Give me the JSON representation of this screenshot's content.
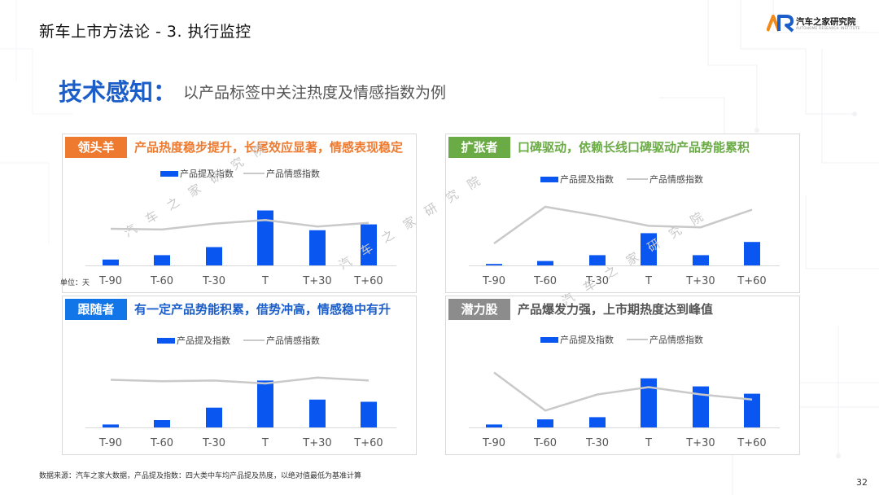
{
  "header": {
    "title": "新车上市方法论 - 3. 执行监控",
    "logo_text": "汽车之家研究院",
    "logo_sub": "AUTOHOME RESEARCH INSTITUTE"
  },
  "headline": {
    "main": "技术感知：",
    "sub": "以产品标签中关注热度及情感指数为例"
  },
  "watermark": "汽车之家研究院",
  "colors": {
    "bar": "#0a56f0",
    "line": "#c9c9c9",
    "headline": "#1b5ec9"
  },
  "panels": [
    {
      "tag": "领头羊",
      "tag_color": "#ee7a2f",
      "title": "产品热度稳步提升，长尾效应显著，情感表现稳定",
      "title_color": "#ee7a2f",
      "unit_label": "单位：天"
    },
    {
      "tag": "扩张者",
      "tag_color": "#6aab45",
      "title": "口碑驱动，依赖长线口碑驱动产品势能累积",
      "title_color": "#6aab45"
    },
    {
      "tag": "跟随者",
      "tag_color": "#1276e8",
      "title": "有一定产品势能积累，借势冲高，情感稳中有升",
      "title_color": "#1b5ec9"
    },
    {
      "tag": "潜力股",
      "tag_color": "#8c8c8c",
      "title": "产品爆发力强，上市期热度达到峰值",
      "title_color": "#555555"
    }
  ],
  "chart_data": [
    {
      "type": "bar",
      "categories": [
        "T-90",
        "T-60",
        "T-30",
        "T",
        "T+30",
        "T+60"
      ],
      "series": [
        {
          "name": "产品提及指数",
          "type": "bar",
          "values": [
            8,
            14,
            25,
            75,
            48,
            56
          ]
        },
        {
          "name": "产品情感指数",
          "type": "line",
          "values": [
            50,
            49,
            57,
            62,
            53,
            58
          ]
        }
      ],
      "ylim": [
        0,
        100
      ]
    },
    {
      "type": "bar",
      "categories": [
        "T-90",
        "T-60",
        "T-30",
        "T",
        "T+30",
        "T+60"
      ],
      "series": [
        {
          "name": "产品提及指数",
          "type": "bar",
          "values": [
            2,
            6,
            14,
            44,
            14,
            32
          ]
        },
        {
          "name": "产品情感指数",
          "type": "line",
          "values": [
            30,
            80,
            68,
            54,
            52,
            76
          ]
        }
      ],
      "ylim": [
        0,
        100
      ]
    },
    {
      "type": "bar",
      "categories": [
        "T-90",
        "T-60",
        "T-30",
        "T",
        "T+30",
        "T+60"
      ],
      "series": [
        {
          "name": "产品提及指数",
          "type": "bar",
          "values": [
            4,
            10,
            27,
            64,
            38,
            35
          ]
        },
        {
          "name": "产品情感指数",
          "type": "line",
          "values": [
            65,
            63,
            64,
            60,
            68,
            64
          ]
        }
      ],
      "ylim": [
        0,
        100
      ]
    },
    {
      "type": "bar",
      "categories": [
        "T-90",
        "T-60",
        "T-30",
        "T",
        "T+30",
        "T+60"
      ],
      "series": [
        {
          "name": "产品提及指数",
          "type": "bar",
          "values": [
            4,
            11,
            14,
            67,
            56,
            46
          ]
        },
        {
          "name": "产品情感指数",
          "type": "line",
          "values": [
            75,
            23,
            45,
            55,
            45,
            38
          ]
        }
      ],
      "ylim": [
        0,
        100
      ]
    }
  ],
  "footer": {
    "source": "数据来源：汽车之家大数据，产品提及指数：四大类中车均产品提及热度，以绝对值最低为基准计算",
    "page": "32"
  }
}
